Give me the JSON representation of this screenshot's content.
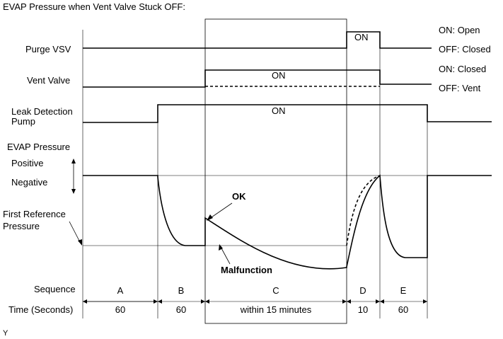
{
  "title": "EVAP Pressure when Vent Valve Stuck OFF:",
  "signals": {
    "purge_vsv": "Purge VSV",
    "vent_valve": "Vent Valve",
    "leak_pump_line1": "Leak Detection",
    "leak_pump_line2": "Pump",
    "evap_pressure": "EVAP Pressure",
    "positive": "Positive",
    "negative": "Negative",
    "first_ref_line1": "First Reference",
    "first_ref_line2": "Pressure"
  },
  "states": {
    "purge_on": "ON",
    "vent_on": "ON",
    "pump_on": "ON"
  },
  "legends": {
    "purge_on": "ON: Open",
    "purge_off": "OFF: Closed",
    "vent_on": "ON: Closed",
    "vent_off": "OFF: Vent"
  },
  "annotations": {
    "ok": "OK",
    "malfunction": "Malfunction"
  },
  "footer": {
    "sequence_label": "Sequence",
    "time_label": "Time (Seconds)",
    "sequences": [
      "A",
      "B",
      "C",
      "D",
      "E"
    ],
    "times": [
      "60",
      "60",
      "within 15 minutes",
      "10",
      "60"
    ]
  },
  "figure_id": "Y"
}
